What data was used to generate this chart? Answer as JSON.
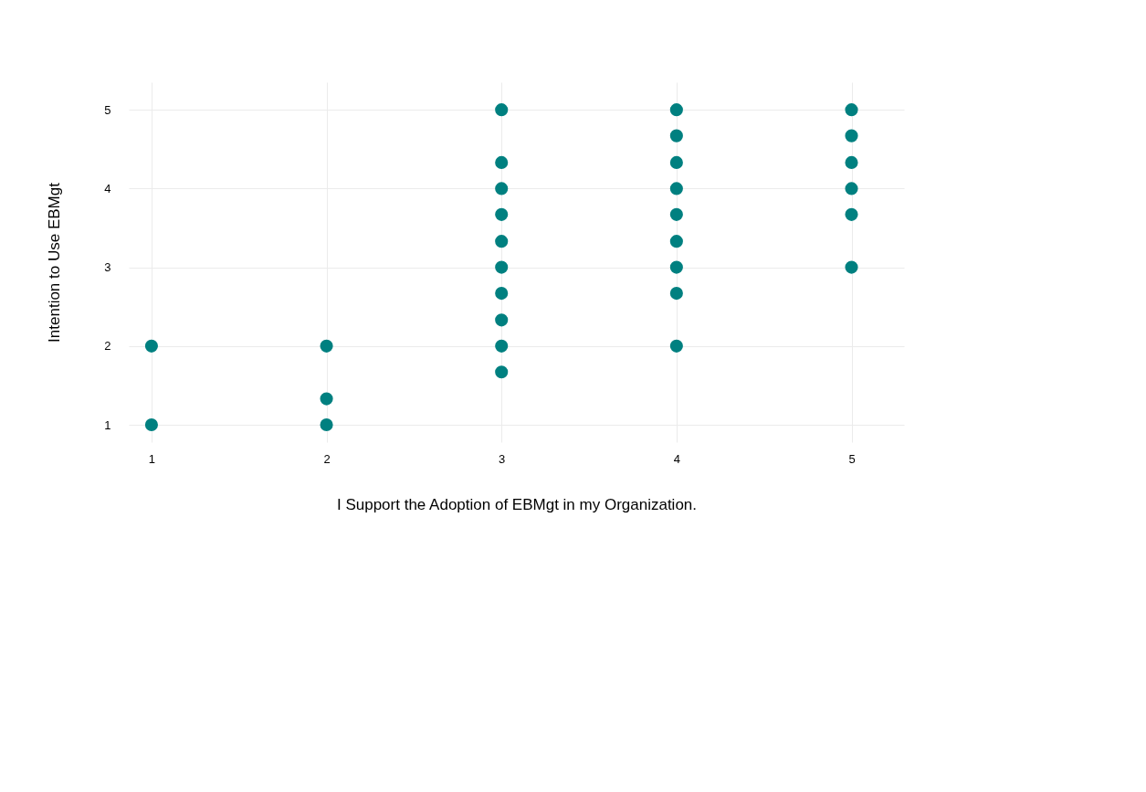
{
  "chart_data": {
    "type": "scatter",
    "xlabel": "I Support the Adoption of EBMgt in my Organization.",
    "ylabel": "Intention to Use EBMgt",
    "x": [
      1,
      1,
      2,
      2,
      2,
      3,
      3,
      3,
      3,
      3,
      3,
      3,
      3,
      3,
      3,
      4,
      4,
      4,
      4,
      4,
      4,
      4,
      4,
      4,
      5,
      5,
      5,
      5,
      5,
      5
    ],
    "series": [
      {
        "color": "#008080",
        "values": [
          1,
          2,
          1,
          1.33,
          2,
          1.67,
          2,
          2.33,
          2.67,
          3,
          3.33,
          3.67,
          4,
          4.33,
          5,
          2,
          2.67,
          3,
          3.33,
          3.67,
          4,
          4.33,
          4.67,
          5,
          3,
          3.67,
          4,
          4.33,
          4.67,
          5
        ]
      }
    ],
    "xlim": [
      0.87,
      5.3
    ],
    "ylim": [
      0.78,
      5.35
    ],
    "xticks": [
      1,
      2,
      3,
      4,
      5
    ],
    "yticks": [
      1,
      2,
      3,
      4,
      5
    ],
    "grid": true,
    "marker": "circle"
  }
}
